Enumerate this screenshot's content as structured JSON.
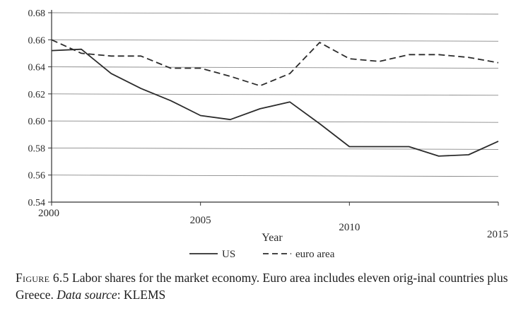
{
  "chart_data": {
    "type": "line",
    "title": "",
    "xlabel": "Year",
    "ylabel": "",
    "xlim": [
      2000,
      2015
    ],
    "ylim": [
      0.54,
      0.68
    ],
    "x_ticks": [
      2000,
      2005,
      2010,
      2015
    ],
    "y_ticks": [
      "0.54",
      "0.56",
      "0.58",
      "0.60",
      "0.62",
      "0.64",
      "0.66",
      "0.68"
    ],
    "grid": true,
    "legend_position": "bottom-center",
    "x": [
      2000,
      2001,
      2002,
      2003,
      2004,
      2005,
      2006,
      2007,
      2008,
      2009,
      2010,
      2011,
      2012,
      2013,
      2014,
      2015
    ],
    "series": [
      {
        "name": "US",
        "style": "solid",
        "values": [
          0.652,
          0.653,
          0.635,
          0.624,
          0.615,
          0.604,
          0.601,
          0.609,
          0.614,
          0.598,
          0.581,
          0.581,
          0.581,
          0.574,
          0.575,
          0.585
        ]
      },
      {
        "name": "euro area",
        "style": "dashed",
        "values": [
          0.66,
          0.65,
          0.648,
          0.648,
          0.639,
          0.639,
          0.633,
          0.626,
          0.635,
          0.658,
          0.646,
          0.644,
          0.649,
          0.649,
          0.647,
          0.643
        ]
      }
    ]
  },
  "caption": {
    "label": "Figure 6.5",
    "text_1": "Labor shares for the market economy. Euro area includes eleven orig-inal countries plus Greece. ",
    "source_label": "Data source",
    "source_text": ": KLEMS"
  }
}
